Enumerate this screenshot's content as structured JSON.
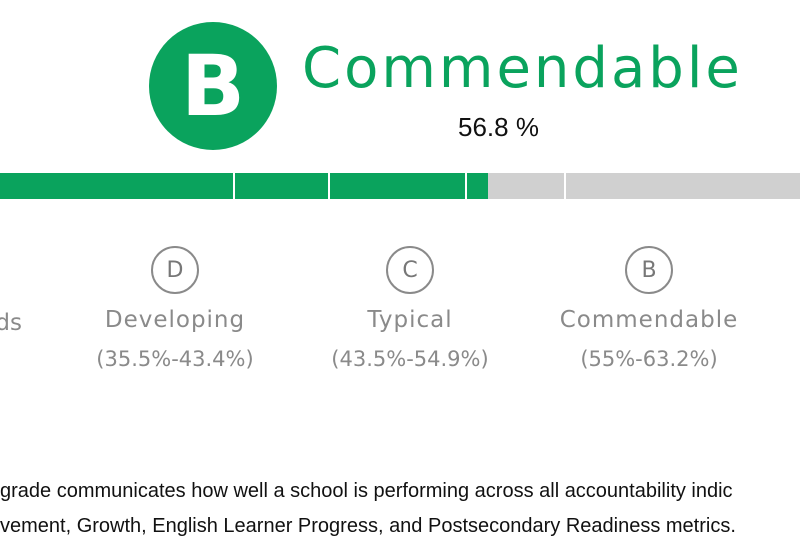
{
  "summary": {
    "grade_letter": "B",
    "grade_label": "Commendable",
    "score_percent": "56.8 %",
    "score_value": 56.8,
    "accent_color": "#0aa35d"
  },
  "progress": {
    "filled_percent": 61,
    "fill_color": "#0aa35d",
    "track_color": "#d0d0d0"
  },
  "levels": [
    {
      "partial_name": "ds"
    },
    {
      "letter": "D",
      "name": "Developing",
      "range": "(35.5%-43.4%)"
    },
    {
      "letter": "C",
      "name": "Typical",
      "range": "(43.5%-54.9%)"
    },
    {
      "letter": "B",
      "name": "Commendable",
      "range": "(55%-63.2%)"
    }
  ],
  "description": {
    "line1": "grade communicates how well a school is performing across all accountability indic",
    "line2": "vement, Growth, English Learner Progress, and Postsecondary Readiness metrics."
  }
}
